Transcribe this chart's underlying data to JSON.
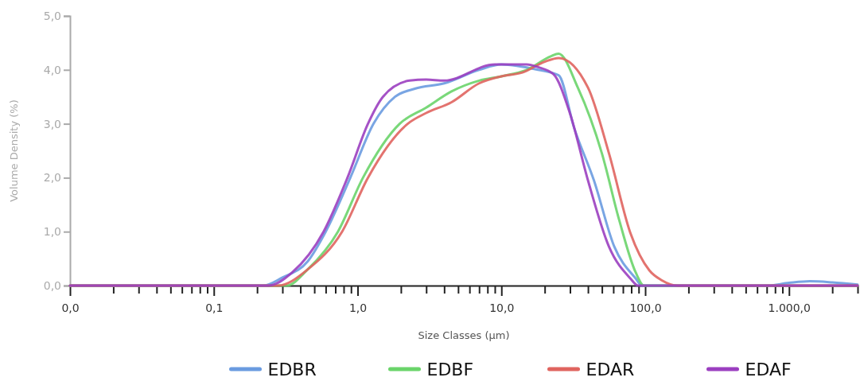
{
  "chart_data": {
    "type": "line",
    "xlabel": "Size Classes (µm)",
    "ylabel": "Volume Density (%)",
    "log": "x",
    "grid": false,
    "legend": "bottom",
    "marker": "none",
    "line_style": "solid",
    "xlim": [
      0.01,
      3000
    ],
    "ylim": [
      0,
      5
    ],
    "xticks": [
      {
        "value": 0.01,
        "label": "0,0"
      },
      {
        "value": 0.02,
        "label": null
      },
      {
        "value": 0.03,
        "label": null
      },
      {
        "value": 0.04,
        "label": null
      },
      {
        "value": 0.05,
        "label": null
      },
      {
        "value": 0.06,
        "label": null
      },
      {
        "value": 0.07,
        "label": null
      },
      {
        "value": 0.08,
        "label": null
      },
      {
        "value": 0.09,
        "label": null
      },
      {
        "value": 0.1,
        "label": "0,1"
      },
      {
        "value": 0.2,
        "label": null
      },
      {
        "value": 0.3,
        "label": null
      },
      {
        "value": 0.4,
        "label": null
      },
      {
        "value": 0.5,
        "label": null
      },
      {
        "value": 0.6,
        "label": null
      },
      {
        "value": 0.7,
        "label": null
      },
      {
        "value": 0.8,
        "label": null
      },
      {
        "value": 0.9,
        "label": null
      },
      {
        "value": 1,
        "label": "1,0"
      },
      {
        "value": 2,
        "label": null
      },
      {
        "value": 3,
        "label": null
      },
      {
        "value": 4,
        "label": null
      },
      {
        "value": 5,
        "label": null
      },
      {
        "value": 6,
        "label": null
      },
      {
        "value": 7,
        "label": null
      },
      {
        "value": 8,
        "label": null
      },
      {
        "value": 9,
        "label": null
      },
      {
        "value": 10,
        "label": "10,0"
      },
      {
        "value": 20,
        "label": null
      },
      {
        "value": 30,
        "label": null
      },
      {
        "value": 40,
        "label": null
      },
      {
        "value": 50,
        "label": null
      },
      {
        "value": 60,
        "label": null
      },
      {
        "value": 70,
        "label": null
      },
      {
        "value": 80,
        "label": null
      },
      {
        "value": 90,
        "label": null
      },
      {
        "value": 100,
        "label": "100,0"
      },
      {
        "value": 200,
        "label": null
      },
      {
        "value": 300,
        "label": null
      },
      {
        "value": 400,
        "label": null
      },
      {
        "value": 500,
        "label": null
      },
      {
        "value": 600,
        "label": null
      },
      {
        "value": 700,
        "label": null
      },
      {
        "value": 800,
        "label": null
      },
      {
        "value": 900,
        "label": null
      },
      {
        "value": 1000,
        "label": "1.000,0"
      },
      {
        "value": 2000,
        "label": null
      },
      {
        "value": 3000,
        "label": null
      }
    ],
    "yticks": [
      {
        "value": 0,
        "label": "0,0"
      },
      {
        "value": 1,
        "label": "1,0"
      },
      {
        "value": 2,
        "label": "2,0"
      },
      {
        "value": 3,
        "label": "3,0"
      },
      {
        "value": 4,
        "label": "4,0"
      },
      {
        "value": 5,
        "label": "5,0"
      }
    ],
    "series": [
      {
        "name": "EDBR",
        "color": "#6a9be0",
        "x": [
          0.01,
          0.22,
          0.3,
          0.45,
          0.6,
          0.89,
          1.29,
          1.82,
          2.5,
          4,
          7,
          10,
          18,
          25,
          32,
          44,
          61,
          86,
          95,
          700,
          1000,
          1400,
          2000,
          3000
        ],
        "values": [
          0,
          0,
          0.15,
          0.45,
          1.0,
          2.0,
          3.0,
          3.5,
          3.65,
          3.75,
          4.0,
          4.1,
          4.0,
          3.9,
          2.93,
          1.95,
          0.72,
          0.13,
          0,
          0,
          0.05,
          0.08,
          0.06,
          0.02
        ]
      },
      {
        "name": "EDBF",
        "color": "#6ad46a",
        "x": [
          0.01,
          0.32,
          0.45,
          0.73,
          1.09,
          1.96,
          3,
          4.5,
          7,
          10,
          15,
          22,
          25,
          34,
          50,
          66,
          86,
          98,
          3000
        ],
        "values": [
          0,
          0,
          0.3,
          1.0,
          2.0,
          3.0,
          3.3,
          3.6,
          3.8,
          3.88,
          4.0,
          4.25,
          4.3,
          3.67,
          2.45,
          1.21,
          0.24,
          0,
          0
        ]
      },
      {
        "name": "EDAR",
        "color": "#e0645f",
        "x": [
          0.01,
          0.28,
          0.45,
          0.78,
          1.18,
          2.23,
          3,
          4.5,
          7,
          10,
          14,
          20,
          25,
          40,
          56,
          79,
          107,
          130,
          168,
          3000
        ],
        "values": [
          0,
          0,
          0.3,
          1.0,
          2.0,
          3.0,
          3.2,
          3.4,
          3.75,
          3.88,
          3.95,
          4.15,
          4.22,
          3.67,
          2.45,
          0.97,
          0.28,
          0.1,
          0,
          0
        ]
      },
      {
        "name": "EDAF",
        "color": "#9b3fc0",
        "x": [
          0.01,
          0.24,
          0.35,
          0.58,
          0.85,
          1.18,
          1.5,
          2.3,
          3,
          4,
          9,
          15,
          18,
          23,
          30,
          40,
          56,
          79,
          89,
          3000
        ],
        "values": [
          0,
          0,
          0.24,
          1.0,
          2.0,
          3.0,
          3.5,
          3.8,
          3.82,
          3.8,
          4.1,
          4.1,
          4.05,
          3.92,
          3.19,
          1.95,
          0.72,
          0.13,
          0,
          0
        ]
      }
    ]
  }
}
